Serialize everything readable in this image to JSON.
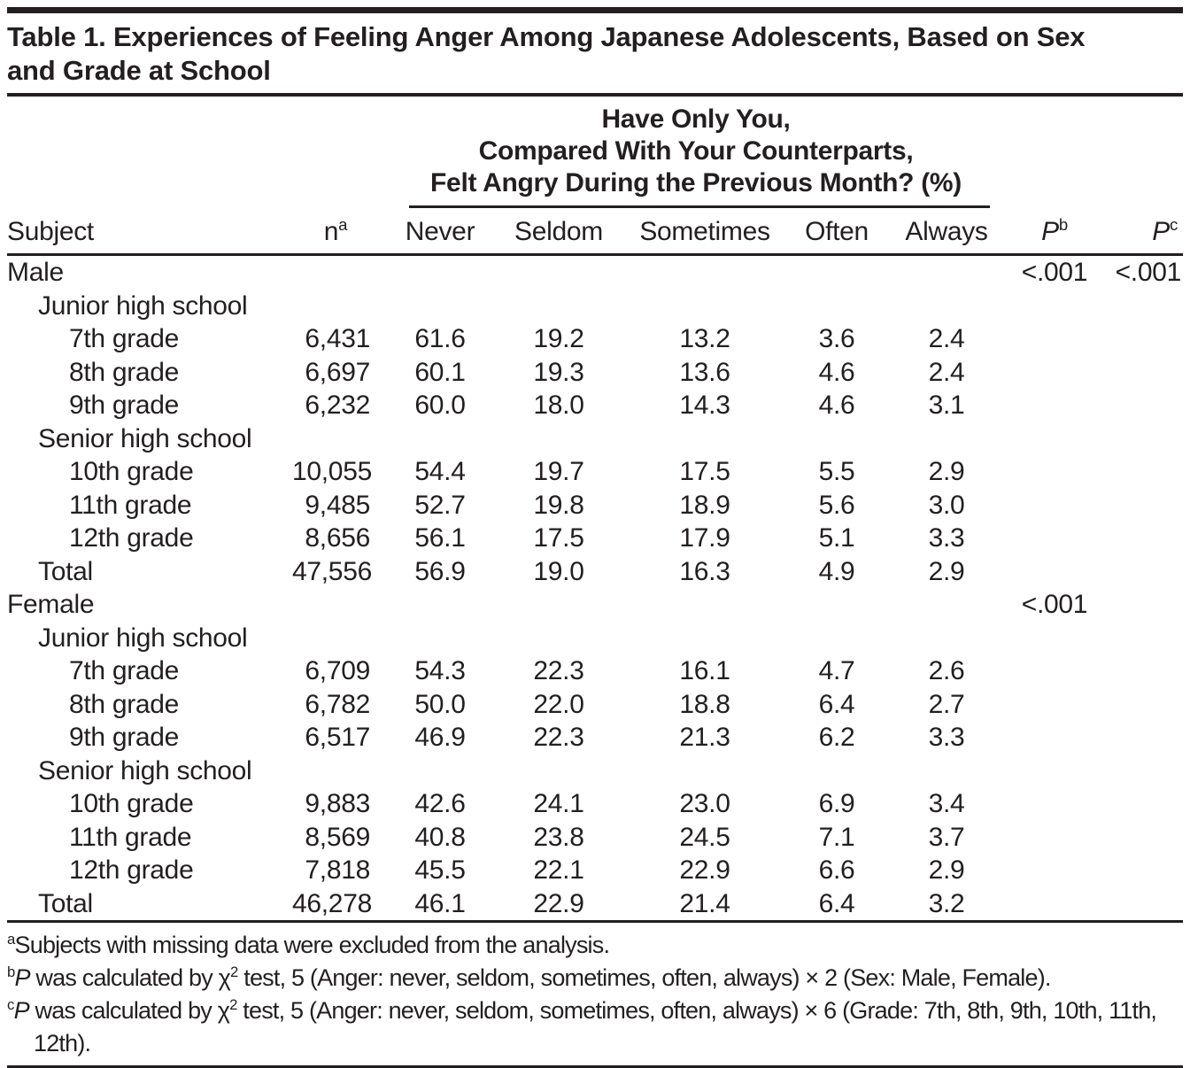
{
  "title": {
    "lines": [
      "Table 1. Experiences of Feeling Anger Among Japanese Adolescents, Based on Sex",
      "and Grade at School"
    ]
  },
  "table": {
    "spanner_lines": [
      "Have Only You,",
      "Compared With Your Counterparts,",
      "Felt Angry During the Previous Month? (%)"
    ],
    "headers": {
      "subject": "Subject",
      "n": {
        "base": "n",
        "sup": "a"
      },
      "never": "Never",
      "seldom": "Seldom",
      "sometimes": "Sometimes",
      "often": "Often",
      "always": "Always",
      "p_b": {
        "base": "P",
        "sup": "b"
      },
      "p_c": {
        "base": "P",
        "sup": "c"
      }
    },
    "rows": [
      {
        "subject": "Male",
        "pb": "<.001",
        "pc": "<.001"
      },
      {
        "subject": "Junior high school"
      },
      {
        "subject": "7th grade",
        "n": "6,431",
        "never": "61.6",
        "seldom": "19.2",
        "sometimes": "13.2",
        "often": "3.6",
        "always": "2.4"
      },
      {
        "subject": "8th grade",
        "n": "6,697",
        "never": "60.1",
        "seldom": "19.3",
        "sometimes": "13.6",
        "often": "4.6",
        "always": "2.4"
      },
      {
        "subject": "9th grade",
        "n": "6,232",
        "never": "60.0",
        "seldom": "18.0",
        "sometimes": "14.3",
        "often": "4.6",
        "always": "3.1"
      },
      {
        "subject": "Senior high school"
      },
      {
        "subject": "10th grade",
        "n": "10,055",
        "never": "54.4",
        "seldom": "19.7",
        "sometimes": "17.5",
        "often": "5.5",
        "always": "2.9"
      },
      {
        "subject": "11th grade",
        "n": "9,485",
        "never": "52.7",
        "seldom": "19.8",
        "sometimes": "18.9",
        "often": "5.6",
        "always": "3.0"
      },
      {
        "subject": "12th grade",
        "n": "8,656",
        "never": "56.1",
        "seldom": "17.5",
        "sometimes": "17.9",
        "often": "5.1",
        "always": "3.3"
      },
      {
        "subject": "Total",
        "n": "47,556",
        "never": "56.9",
        "seldom": "19.0",
        "sometimes": "16.3",
        "often": "4.9",
        "always": "2.9"
      },
      {
        "subject": "Female",
        "pb": "<.001"
      },
      {
        "subject": "Junior high school"
      },
      {
        "subject": "7th grade",
        "n": "6,709",
        "never": "54.3",
        "seldom": "22.3",
        "sometimes": "16.1",
        "often": "4.7",
        "always": "2.6"
      },
      {
        "subject": "8th grade",
        "n": "6,782",
        "never": "50.0",
        "seldom": "22.0",
        "sometimes": "18.8",
        "often": "6.4",
        "always": "2.7"
      },
      {
        "subject": "9th grade",
        "n": "6,517",
        "never": "46.9",
        "seldom": "22.3",
        "sometimes": "21.3",
        "often": "6.2",
        "always": "3.3"
      },
      {
        "subject": "Senior high school"
      },
      {
        "subject": "10th grade",
        "n": "9,883",
        "never": "42.6",
        "seldom": "24.1",
        "sometimes": "23.0",
        "often": "6.9",
        "always": "3.4"
      },
      {
        "subject": "11th grade",
        "n": "8,569",
        "never": "40.8",
        "seldom": "23.8",
        "sometimes": "24.5",
        "often": "7.1",
        "always": "3.7"
      },
      {
        "subject": "12th grade",
        "n": "7,818",
        "never": "45.5",
        "seldom": "22.1",
        "sometimes": "22.9",
        "often": "6.6",
        "always": "2.9"
      },
      {
        "subject": "Total",
        "n": "46,278",
        "never": "46.1",
        "seldom": "22.9",
        "sometimes": "21.4",
        "often": "6.4",
        "always": "3.2"
      }
    ]
  },
  "footnotes": [
    {
      "segments": [
        {
          "t": "a",
          "sup": true
        },
        {
          "t": "Subjects with missing data were excluded from the analysis."
        }
      ]
    },
    {
      "segments": [
        {
          "t": "b",
          "sup": true
        },
        {
          "t": "P",
          "italic": true
        },
        {
          "t": " was calculated by χ"
        },
        {
          "t": "2",
          "sup": true
        },
        {
          "t": " test, 5 (Anger: never, seldom, sometimes, often, always) × 2 (Sex: Male, Female)."
        }
      ]
    },
    {
      "segments": [
        {
          "t": "c",
          "sup": true
        },
        {
          "t": "P",
          "italic": true
        },
        {
          "t": " was calculated by χ"
        },
        {
          "t": "2",
          "sup": true
        },
        {
          "t": " test, 5 (Anger: never, seldom, sometimes, often, always) × 6 (Grade: 7th, 8th, 9th, 10th, 11th, 12th)."
        }
      ]
    }
  ],
  "colors": {
    "text": "#231f20",
    "rule": "#231f20",
    "background": "#ffffff"
  }
}
